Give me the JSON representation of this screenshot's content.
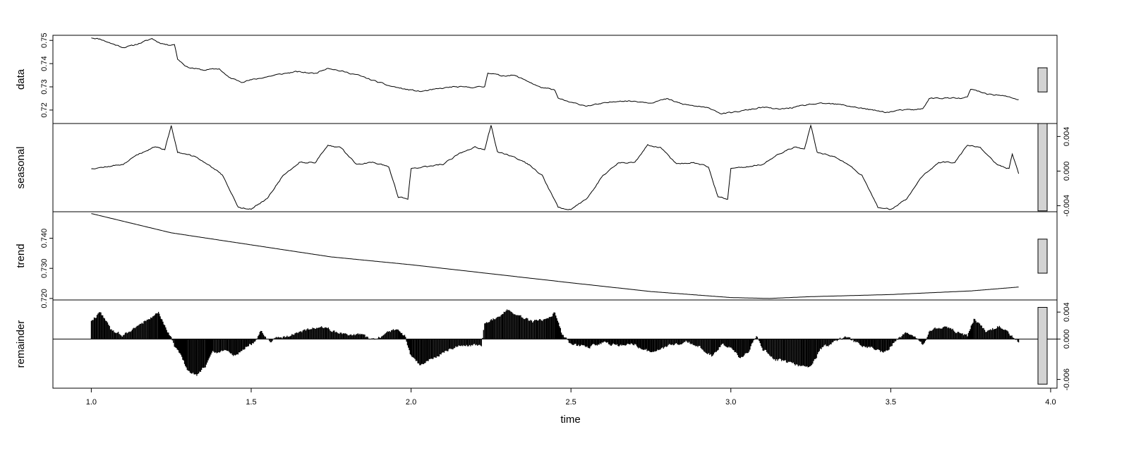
{
  "chart_data": {
    "type": "line",
    "xlabel": "time",
    "x_ticks": [
      "1.0",
      "1.5",
      "2.0",
      "2.5",
      "3.0",
      "3.5",
      "4.0"
    ],
    "xlim": [
      0.88,
      4.02
    ],
    "x_range": [
      1.0,
      3.9
    ],
    "colors": {
      "line": "#000000",
      "range_bar": "#d3d3d3",
      "frame": "#000000"
    },
    "panels": [
      {
        "label": "data",
        "style": "line",
        "ylim": [
          0.7142,
          0.7522
        ],
        "ticks": [
          "0.72",
          "0.73",
          "0.74",
          "0.75"
        ],
        "tick_side": "left",
        "range_bar": [
          0.7278,
          0.7382
        ],
        "values": [
          [
            1.0,
            0.7512
          ],
          [
            1.03,
            0.7505
          ],
          [
            1.06,
            0.7488
          ],
          [
            1.1,
            0.747
          ],
          [
            1.13,
            0.7478
          ],
          [
            1.16,
            0.7492
          ],
          [
            1.19,
            0.7508
          ],
          [
            1.21,
            0.7492
          ],
          [
            1.24,
            0.748
          ],
          [
            1.26,
            0.7484
          ],
          [
            1.27,
            0.742
          ],
          [
            1.3,
            0.7385
          ],
          [
            1.35,
            0.7372
          ],
          [
            1.4,
            0.7378
          ],
          [
            1.43,
            0.734
          ],
          [
            1.47,
            0.7322
          ],
          [
            1.52,
            0.7335
          ],
          [
            1.58,
            0.7352
          ],
          [
            1.64,
            0.7365
          ],
          [
            1.7,
            0.7358
          ],
          [
            1.74,
            0.7382
          ],
          [
            1.78,
            0.7368
          ],
          [
            1.83,
            0.7352
          ],
          [
            1.88,
            0.7328
          ],
          [
            1.93,
            0.7305
          ],
          [
            1.98,
            0.729
          ],
          [
            2.03,
            0.728
          ],
          [
            2.08,
            0.729
          ],
          [
            2.13,
            0.73
          ],
          [
            2.18,
            0.7298
          ],
          [
            2.23,
            0.73
          ],
          [
            2.24,
            0.7362
          ],
          [
            2.28,
            0.7348
          ],
          [
            2.32,
            0.735
          ],
          [
            2.36,
            0.7328
          ],
          [
            2.4,
            0.73
          ],
          [
            2.45,
            0.7285
          ],
          [
            2.46,
            0.725
          ],
          [
            2.5,
            0.7232
          ],
          [
            2.55,
            0.7218
          ],
          [
            2.6,
            0.7228
          ],
          [
            2.65,
            0.724
          ],
          [
            2.7,
            0.7238
          ],
          [
            2.75,
            0.7232
          ],
          [
            2.8,
            0.7248
          ],
          [
            2.85,
            0.7225
          ],
          [
            2.9,
            0.7215
          ],
          [
            2.94,
            0.7205
          ],
          [
            2.97,
            0.7185
          ],
          [
            3.0,
            0.7188
          ],
          [
            3.05,
            0.72
          ],
          [
            3.1,
            0.7212
          ],
          [
            3.15,
            0.7203
          ],
          [
            3.2,
            0.7212
          ],
          [
            3.25,
            0.7225
          ],
          [
            3.3,
            0.7228
          ],
          [
            3.35,
            0.7222
          ],
          [
            3.4,
            0.721
          ],
          [
            3.45,
            0.7198
          ],
          [
            3.49,
            0.719
          ],
          [
            3.52,
            0.7198
          ],
          [
            3.58,
            0.7202
          ],
          [
            3.6,
            0.7205
          ],
          [
            3.62,
            0.725
          ],
          [
            3.67,
            0.7252
          ],
          [
            3.72,
            0.725
          ],
          [
            3.74,
            0.7255
          ],
          [
            3.75,
            0.729
          ],
          [
            3.8,
            0.727
          ],
          [
            3.85,
            0.7262
          ],
          [
            3.9,
            0.7245
          ]
        ]
      },
      {
        "label": "seasonal",
        "style": "line",
        "ylim": [
          -0.0047,
          0.0055
        ],
        "ticks": [
          "-0.004",
          "0.000",
          "0.004"
        ],
        "tick_side": "right",
        "range_bar": [
          -0.0046,
          0.0055
        ],
        "values": [
          [
            1.0,
            0.0003
          ],
          [
            1.05,
            0.0005
          ],
          [
            1.1,
            0.0008
          ],
          [
            1.15,
            0.002
          ],
          [
            1.2,
            0.0028
          ],
          [
            1.23,
            0.0025
          ],
          [
            1.25,
            0.0053
          ],
          [
            1.27,
            0.0022
          ],
          [
            1.32,
            0.0017
          ],
          [
            1.37,
            0.0007
          ],
          [
            1.41,
            -0.0005
          ],
          [
            1.43,
            -0.002
          ],
          [
            1.46,
            -0.0042
          ],
          [
            1.5,
            -0.0044
          ],
          [
            1.55,
            -0.0032
          ],
          [
            1.6,
            -0.0005
          ],
          [
            1.65,
            0.001
          ],
          [
            1.7,
            0.001
          ],
          [
            1.74,
            0.003
          ],
          [
            1.78,
            0.0027
          ],
          [
            1.83,
            0.0008
          ],
          [
            1.88,
            0.001
          ],
          [
            1.93,
            0.0005
          ],
          [
            1.96,
            -0.003
          ],
          [
            1.99,
            -0.0032
          ],
          [
            2.0,
            0.0003
          ],
          [
            2.05,
            0.0005
          ],
          [
            2.1,
            0.0008
          ],
          [
            2.15,
            0.002
          ],
          [
            2.2,
            0.0028
          ],
          [
            2.23,
            0.0025
          ],
          [
            2.25,
            0.0053
          ],
          [
            2.27,
            0.0022
          ],
          [
            2.32,
            0.0017
          ],
          [
            2.37,
            0.0007
          ],
          [
            2.41,
            -0.0005
          ],
          [
            2.43,
            -0.002
          ],
          [
            2.46,
            -0.0042
          ],
          [
            2.5,
            -0.0044
          ],
          [
            2.55,
            -0.0032
          ],
          [
            2.6,
            -0.0005
          ],
          [
            2.65,
            0.001
          ],
          [
            2.7,
            0.001
          ],
          [
            2.74,
            0.003
          ],
          [
            2.78,
            0.0027
          ],
          [
            2.83,
            0.0008
          ],
          [
            2.88,
            0.001
          ],
          [
            2.93,
            0.0005
          ],
          [
            2.96,
            -0.003
          ],
          [
            2.99,
            -0.0032
          ],
          [
            3.0,
            0.0003
          ],
          [
            3.05,
            0.0005
          ],
          [
            3.1,
            0.0008
          ],
          [
            3.15,
            0.002
          ],
          [
            3.2,
            0.0028
          ],
          [
            3.23,
            0.0025
          ],
          [
            3.25,
            0.0053
          ],
          [
            3.27,
            0.0022
          ],
          [
            3.32,
            0.0017
          ],
          [
            3.37,
            0.0007
          ],
          [
            3.41,
            -0.0005
          ],
          [
            3.43,
            -0.002
          ],
          [
            3.46,
            -0.0042
          ],
          [
            3.5,
            -0.0044
          ],
          [
            3.55,
            -0.0032
          ],
          [
            3.6,
            -0.0005
          ],
          [
            3.65,
            0.001
          ],
          [
            3.7,
            0.001
          ],
          [
            3.74,
            0.003
          ],
          [
            3.78,
            0.0027
          ],
          [
            3.83,
            0.0008
          ],
          [
            3.87,
            0.0003
          ],
          [
            3.88,
            0.002
          ],
          [
            3.9,
            -0.0003
          ]
        ]
      },
      {
        "label": "trend",
        "style": "line",
        "ylim": [
          0.7195,
          0.7488
        ],
        "ticks": [
          "0.720",
          "0.730",
          "0.740"
        ],
        "tick_side": "left",
        "range_bar": [
          0.7284,
          0.7397
        ],
        "values": [
          [
            1.0,
            0.7482
          ],
          [
            1.25,
            0.7418
          ],
          [
            1.5,
            0.7378
          ],
          [
            1.75,
            0.7338
          ],
          [
            2.0,
            0.7312
          ],
          [
            2.25,
            0.7282
          ],
          [
            2.5,
            0.7252
          ],
          [
            2.75,
            0.7223
          ],
          [
            3.0,
            0.7203
          ],
          [
            3.12,
            0.72
          ],
          [
            3.25,
            0.7206
          ],
          [
            3.5,
            0.7213
          ],
          [
            3.75,
            0.7225
          ],
          [
            3.9,
            0.7238
          ]
        ]
      },
      {
        "label": "remainder",
        "style": "histogram",
        "ylim": [
          -0.0073,
          0.0058
        ],
        "ticks": [
          "-0.006",
          "0.000",
          "0.004"
        ],
        "tick_side": "right",
        "range_bar": [
          -0.0067,
          0.0047
        ],
        "zero_line": true,
        "values": [
          [
            1.0,
            0.0028
          ],
          [
            1.03,
            0.004
          ],
          [
            1.06,
            0.0015
          ],
          [
            1.1,
            0.0005
          ],
          [
            1.14,
            0.0018
          ],
          [
            1.18,
            0.003
          ],
          [
            1.21,
            0.0038
          ],
          [
            1.23,
            0.002
          ],
          [
            1.25,
            0.0002
          ],
          [
            1.26,
            -0.001
          ],
          [
            1.28,
            -0.0025
          ],
          [
            1.3,
            -0.0045
          ],
          [
            1.33,
            -0.0055
          ],
          [
            1.36,
            -0.0038
          ],
          [
            1.38,
            -0.002
          ],
          [
            1.42,
            -0.0018
          ],
          [
            1.45,
            -0.0025
          ],
          [
            1.48,
            -0.0012
          ],
          [
            1.51,
            -0.0005
          ],
          [
            1.53,
            0.0012
          ],
          [
            1.56,
            -0.0003
          ],
          [
            1.6,
            0.0003
          ],
          [
            1.64,
            0.0008
          ],
          [
            1.68,
            0.0015
          ],
          [
            1.72,
            0.0018
          ],
          [
            1.76,
            0.0012
          ],
          [
            1.8,
            0.0005
          ],
          [
            1.84,
            0.0008
          ],
          [
            1.88,
            -0.0002
          ],
          [
            1.92,
            0.0008
          ],
          [
            1.96,
            0.0015
          ],
          [
            1.98,
            0.0005
          ],
          [
            2.0,
            -0.0025
          ],
          [
            2.03,
            -0.004
          ],
          [
            2.06,
            -0.003
          ],
          [
            2.1,
            -0.002
          ],
          [
            2.14,
            -0.0012
          ],
          [
            2.18,
            -0.001
          ],
          [
            2.22,
            -0.0008
          ],
          [
            2.23,
            0.0025
          ],
          [
            2.26,
            0.003
          ],
          [
            2.3,
            0.0042
          ],
          [
            2.34,
            0.0035
          ],
          [
            2.38,
            0.0025
          ],
          [
            2.42,
            0.003
          ],
          [
            2.45,
            0.004
          ],
          [
            2.47,
            0.001
          ],
          [
            2.5,
            -0.0008
          ],
          [
            2.55,
            -0.0012
          ],
          [
            2.6,
            -0.0005
          ],
          [
            2.65,
            -0.001
          ],
          [
            2.7,
            -0.0008
          ],
          [
            2.75,
            -0.002
          ],
          [
            2.78,
            -0.0015
          ],
          [
            2.82,
            -0.0008
          ],
          [
            2.86,
            -0.0003
          ],
          [
            2.9,
            -0.001
          ],
          [
            2.94,
            -0.0025
          ],
          [
            2.97,
            -0.0008
          ],
          [
            3.0,
            -0.0012
          ],
          [
            3.03,
            -0.003
          ],
          [
            3.06,
            -0.0015
          ],
          [
            3.08,
            0.0005
          ],
          [
            3.1,
            -0.0015
          ],
          [
            3.14,
            -0.003
          ],
          [
            3.18,
            -0.0035
          ],
          [
            3.22,
            -0.004
          ],
          [
            3.25,
            -0.0042
          ],
          [
            3.28,
            -0.0015
          ],
          [
            3.32,
            -0.0005
          ],
          [
            3.36,
            0.0003
          ],
          [
            3.4,
            -0.0008
          ],
          [
            3.45,
            -0.0015
          ],
          [
            3.48,
            -0.002
          ],
          [
            3.51,
            -0.0005
          ],
          [
            3.55,
            0.001
          ],
          [
            3.6,
            -0.0008
          ],
          [
            3.62,
            0.001
          ],
          [
            3.66,
            0.0018
          ],
          [
            3.7,
            0.0012
          ],
          [
            3.74,
            0.0005
          ],
          [
            3.76,
            0.003
          ],
          [
            3.8,
            0.001
          ],
          [
            3.84,
            0.002
          ],
          [
            3.87,
            0.0008
          ],
          [
            3.9,
            -0.0005
          ]
        ]
      }
    ]
  }
}
